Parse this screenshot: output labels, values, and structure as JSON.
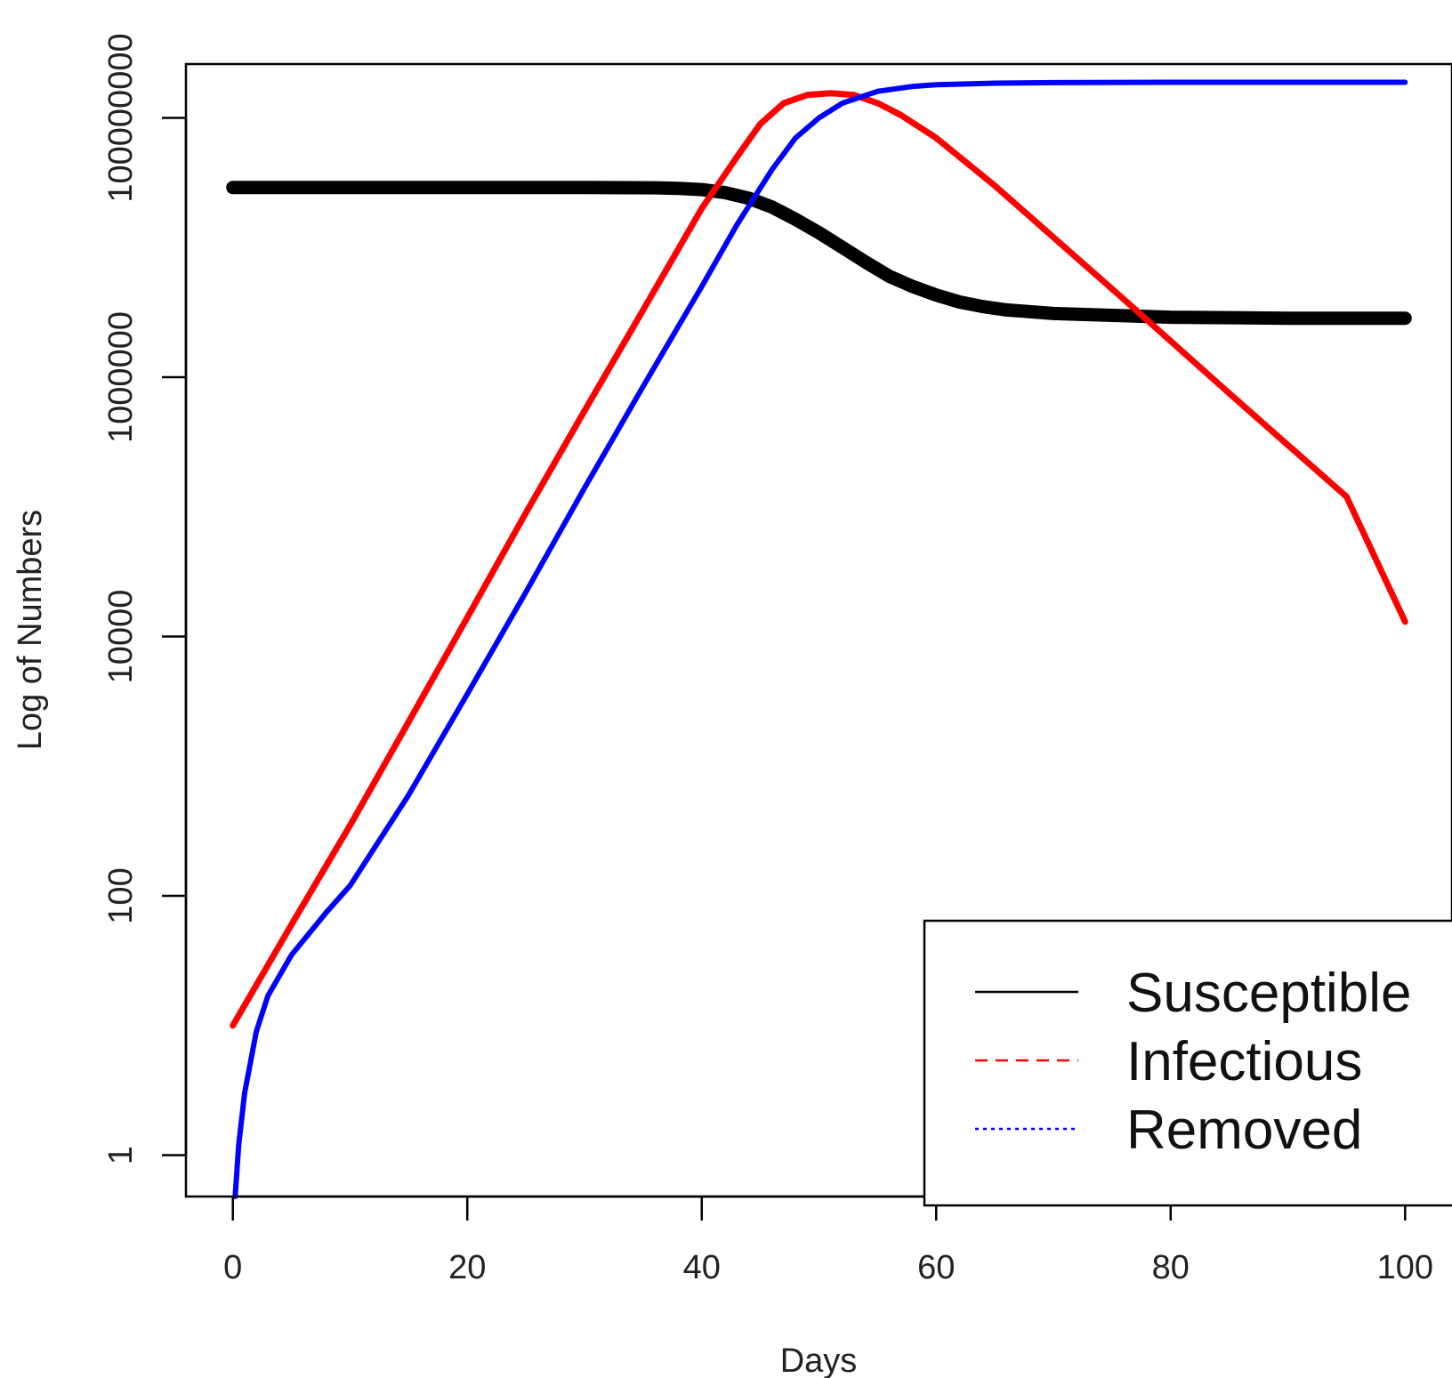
{
  "chart_data": {
    "type": "line",
    "title": "",
    "xlabel": "Days",
    "ylabel": "Log of Numbers",
    "xlim": [
      -4,
      104
    ],
    "ylim": [
      0.48,
      260000000
    ],
    "y_scale": "log",
    "grid": false,
    "legend_position": "bottom-right",
    "x_ticks": [
      0,
      20,
      40,
      60,
      80,
      100
    ],
    "x_tick_labels": [
      "0",
      "20",
      "40",
      "60",
      "80",
      "100"
    ],
    "y_ticks": [
      1,
      100,
      10000,
      1000000,
      100000000
    ],
    "y_tick_labels": [
      "1",
      "100",
      "10000",
      "1000000",
      "100000000"
    ],
    "series": [
      {
        "name": "Susceptible",
        "color": "#000000",
        "line_style": "solid",
        "x": [
          0,
          10,
          20,
          30,
          36,
          38,
          40,
          42,
          44,
          46,
          48,
          50,
          52,
          54,
          56,
          58,
          60,
          62,
          64,
          66,
          70,
          75,
          80,
          90,
          100
        ],
        "y": [
          29000000,
          29000000,
          29000000,
          29000000,
          28900000,
          28600000,
          28000000,
          26500000,
          24000000,
          20500000,
          16500000,
          13000000,
          10000000,
          7700000,
          6000000,
          5000000,
          4300000,
          3800000,
          3500000,
          3300000,
          3100000,
          3000000,
          2900000,
          2850000,
          2850000
        ]
      },
      {
        "name": "Infectious",
        "color": "#ff0000",
        "line_style": "dashed",
        "x": [
          0,
          5,
          10,
          15,
          20,
          25,
          30,
          35,
          40,
          43,
          45,
          47,
          49,
          51,
          53,
          55,
          57,
          60,
          65,
          70,
          75,
          80,
          85,
          90,
          95,
          100
        ],
        "y": [
          10,
          60,
          350,
          2200,
          14000,
          90000,
          550000,
          3300000,
          20000000,
          50000000,
          90000000,
          130000000,
          150000000,
          155000000,
          150000000,
          130000000,
          105000000,
          70000000,
          30000000,
          12000000,
          4800000,
          1900000,
          750000,
          300000,
          120000,
          13000
        ]
      },
      {
        "name": "Removed",
        "color": "#0000ff",
        "line_style": "dotted",
        "x": [
          0.2,
          0.5,
          1,
          2,
          3,
          5,
          8,
          10,
          15,
          20,
          25,
          30,
          35,
          40,
          43,
          46,
          48,
          50,
          52,
          55,
          58,
          60,
          65,
          70,
          80,
          90,
          100
        ],
        "y": [
          0.48,
          1.2,
          3,
          9,
          17,
          35,
          75,
          120,
          600,
          3600,
          22000,
          140000,
          850000,
          5000000,
          15000000,
          40000000,
          70000000,
          100000000,
          130000000,
          160000000,
          175000000,
          180000000,
          185000000,
          187000000,
          188000000,
          188000000,
          188000000
        ]
      }
    ]
  },
  "legend": {
    "items": [
      {
        "label": "Susceptible",
        "color": "#000000",
        "dash": "solid"
      },
      {
        "label": "Infectious",
        "color": "#ff0000",
        "dash": "dashed"
      },
      {
        "label": "Removed",
        "color": "#0000ff",
        "dash": "dotted"
      }
    ]
  }
}
